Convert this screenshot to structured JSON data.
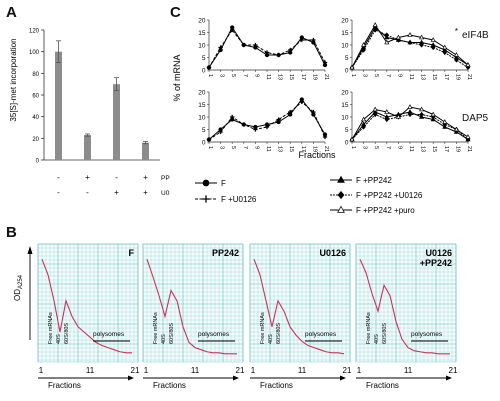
{
  "panels": {
    "A": "A",
    "B": "B",
    "C": "C"
  },
  "panelA": {
    "ylabel": "35[S]-met incorporation",
    "yticks": [
      0,
      20,
      40,
      60,
      80,
      100,
      120
    ],
    "ylim": [
      0,
      120
    ],
    "bars": [
      {
        "value": 100,
        "error": 10,
        "pp242": "-",
        "u0126": "-"
      },
      {
        "value": 23,
        "error": 1,
        "pp242": "+",
        "u0126": "-"
      },
      {
        "value": 70,
        "error": 6,
        "pp242": "-",
        "u0126": "+"
      },
      {
        "value": 16,
        "error": 1,
        "pp242": "+",
        "u0126": "+"
      }
    ],
    "row_labels": [
      "PP242",
      "U0126"
    ],
    "bar_color": "#8c8c8c"
  },
  "panelC": {
    "ylabel": "% of mRNA",
    "xlabel": "Fractions",
    "xticks": [
      "1",
      "3",
      "5",
      "7",
      "9",
      "11",
      "13",
      "15",
      "17",
      "19",
      "21"
    ],
    "genes": [
      "eIF4B",
      "DAP5"
    ],
    "star": "*",
    "legend": [
      "F",
      "F +U0126",
      "F +PP242",
      "F +PP242 +U0126",
      "F +PP242 +puro"
    ]
  },
  "panelB": {
    "ylabel": "OD",
    "ylabel_sub": "A254",
    "xlabel": "Fractions",
    "xticks": [
      "1",
      "11",
      "21"
    ],
    "traces": [
      {
        "title": "F"
      },
      {
        "title": "PP242"
      },
      {
        "title": "U0126"
      },
      {
        "title": "U0126\n+PP242"
      }
    ],
    "peak_labels": [
      "Free mRNAs",
      "40S",
      "60S/80S"
    ],
    "polysomes": "polysomes",
    "grid_color": "#2aa6b0",
    "trace_color": "#c8345a"
  },
  "chart_data": [
    {
      "type": "bar",
      "categories": [
        "-/-",
        "+/-",
        "-/+",
        "+/+"
      ],
      "values": [
        100,
        23,
        70,
        16
      ],
      "errors": [
        10,
        1,
        6,
        1
      ],
      "title": "",
      "ylabel": "35[S]-met incorporation",
      "ylim": [
        0,
        120
      ]
    },
    {
      "type": "line",
      "title": "eIF4B",
      "x": [
        1,
        3,
        5,
        7,
        9,
        11,
        13,
        15,
        17,
        19,
        21
      ],
      "ylim": [
        0,
        20
      ],
      "series": [
        {
          "name": "F",
          "values": [
            1,
            8,
            17,
            10,
            9,
            6,
            6,
            7,
            13,
            11,
            2
          ]
        },
        {
          "name": "F +U0126",
          "values": [
            1,
            9,
            16,
            10,
            10,
            7,
            6,
            8,
            12,
            12,
            3
          ]
        }
      ]
    },
    {
      "type": "line",
      "title": "eIF4B",
      "x": [
        1,
        3,
        5,
        7,
        9,
        11,
        13,
        15,
        17,
        19,
        21
      ],
      "ylim": [
        0,
        20
      ],
      "series": [
        {
          "name": "F +PP242",
          "values": [
            1,
            9,
            17,
            13,
            12,
            11,
            11,
            10,
            8,
            5,
            2
          ]
        },
        {
          "name": "F +PP242 +U0126",
          "values": [
            1,
            8,
            16,
            14,
            12,
            11,
            10,
            9,
            7,
            4,
            1
          ]
        },
        {
          "name": "F +PP242 +puro",
          "values": [
            1,
            10,
            18,
            11,
            13,
            14,
            13,
            12,
            9,
            6,
            2
          ]
        }
      ]
    },
    {
      "type": "line",
      "title": "DAP5",
      "x": [
        1,
        3,
        5,
        7,
        9,
        11,
        13,
        15,
        17,
        19,
        21
      ],
      "ylim": [
        0,
        20
      ],
      "series": [
        {
          "name": "F",
          "values": [
            1,
            5,
            9,
            7,
            6,
            7,
            8,
            11,
            17,
            11,
            3
          ]
        },
        {
          "name": "F +U0126",
          "values": [
            1,
            4,
            10,
            7,
            5,
            6,
            9,
            12,
            16,
            12,
            2
          ]
        }
      ]
    },
    {
      "type": "line",
      "title": "DAP5",
      "x": [
        1,
        3,
        5,
        7,
        9,
        11,
        13,
        15,
        17,
        19,
        21
      ],
      "ylim": [
        0,
        20
      ],
      "series": [
        {
          "name": "F +PP242",
          "values": [
            1,
            7,
            12,
            10,
            11,
            12,
            10,
            9,
            6,
            4,
            1
          ]
        },
        {
          "name": "F +PP242 +U0126",
          "values": [
            1,
            6,
            11,
            9,
            10,
            11,
            11,
            10,
            7,
            5,
            1
          ]
        },
        {
          "name": "F +PP242 +puro",
          "values": [
            1,
            9,
            13,
            12,
            10,
            14,
            13,
            11,
            8,
            5,
            2
          ]
        }
      ]
    }
  ]
}
